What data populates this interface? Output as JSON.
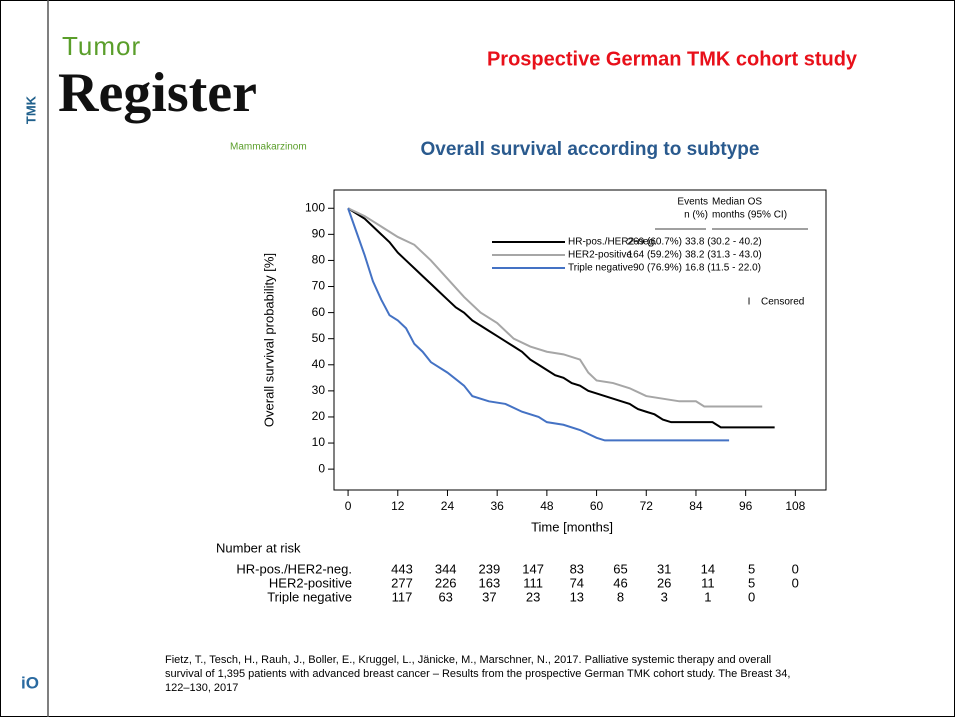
{
  "header": {
    "logo_top": "Tumor",
    "logo_main": "Register",
    "logo_sub": "Mammakarzinom",
    "side_label": "TMK",
    "corner_logo": "iO",
    "title": "Prospective German TMK cohort study"
  },
  "chart_data": {
    "type": "line",
    "title": "Overall survival according to subtype",
    "x_label": "Time [months]",
    "y_label": "Overall survival probability [%]",
    "xlim": [
      -3.4,
      115.4
    ],
    "ylim": [
      -8,
      107
    ],
    "xticks": [
      0,
      12,
      24,
      36,
      48,
      60,
      72,
      84,
      96,
      108
    ],
    "yticks": [
      0,
      10,
      20,
      30,
      40,
      50,
      60,
      70,
      80,
      90,
      100
    ],
    "legend_headers": {
      "events_1": "Events",
      "events_2": "n (%)",
      "median_1": "Median OS",
      "median_2": "months (95% CI)"
    },
    "censored_symbol": "I",
    "censored_label": "Censored",
    "series": [
      {
        "name": "HR-pos./HER2-neg.",
        "color": "#000000",
        "events": "269 (60.7%)",
        "median": "33.8 (30.2 - 40.2)",
        "x": [
          0,
          2,
          4,
          6,
          8,
          10,
          12,
          14,
          16,
          18,
          20,
          22,
          24,
          26,
          28,
          30,
          32,
          34,
          36,
          38,
          40,
          42,
          44,
          46,
          48,
          50,
          52,
          54,
          56,
          58,
          60,
          62,
          64,
          66,
          68,
          70,
          72,
          74,
          76,
          78,
          84,
          88,
          90,
          96,
          103
        ],
        "values": [
          100,
          98,
          96,
          93,
          90,
          87,
          83,
          80,
          77,
          74,
          71,
          68,
          65,
          62,
          60,
          57,
          55,
          53,
          51,
          49,
          47,
          45,
          42,
          40,
          38,
          36,
          35,
          33,
          32,
          30,
          29,
          28,
          27,
          26,
          25,
          23,
          22,
          21,
          19,
          18,
          18,
          18,
          16,
          16,
          16
        ]
      },
      {
        "name": "HER2-positive",
        "color": "#a6a6a6",
        "events": "164 (59.2%)",
        "median": "38.2 (31.3 - 43.0)",
        "x": [
          0,
          4,
          8,
          12,
          16,
          20,
          24,
          28,
          32,
          36,
          40,
          44,
          48,
          52,
          56,
          58,
          60,
          64,
          68,
          72,
          76,
          80,
          84,
          86,
          90,
          100
        ],
        "values": [
          100,
          97,
          93,
          89,
          86,
          80,
          73,
          66,
          60,
          56,
          50,
          47,
          45,
          44,
          42,
          37,
          34,
          33,
          31,
          28,
          27,
          26,
          26,
          24,
          24,
          24
        ]
      },
      {
        "name": "Triple negative",
        "color": "#4472c4",
        "events": "90 (76.9%)",
        "median": "16.8 (11.5 - 22.0)",
        "x": [
          0,
          2,
          4,
          6,
          8,
          10,
          12,
          14,
          16,
          18,
          20,
          24,
          28,
          30,
          34,
          38,
          42,
          46,
          48,
          52,
          56,
          60,
          62,
          70,
          80,
          92
        ],
        "values": [
          100,
          91,
          82,
          72,
          65,
          59,
          57,
          54,
          48,
          45,
          41,
          37,
          32,
          28,
          26,
          25,
          22,
          20,
          18,
          17,
          15,
          12,
          11,
          11,
          11,
          11
        ]
      }
    ],
    "risk_table": {
      "title": "Number at risk",
      "rows": [
        {
          "label": "HR-pos./HER2-neg.",
          "values": [
            443,
            344,
            239,
            147,
            83,
            65,
            31,
            14,
            5,
            0
          ]
        },
        {
          "label": "HER2-positive",
          "values": [
            277,
            226,
            163,
            111,
            74,
            46,
            26,
            11,
            5,
            0
          ]
        },
        {
          "label": "Triple negative",
          "values": [
            117,
            63,
            37,
            23,
            13,
            8,
            3,
            1,
            0
          ]
        }
      ]
    }
  },
  "citation": [
    "Fietz, T., Tesch, H., Rauh, J., Boller, E., Kruggel, L., Jänicke, M., Marschner, N., 2017. Palliative systemic therapy and overall",
    "survival of 1,395 patients with advanced breast cancer – Results from the prospective German TMK cohort study. The Breast 34,",
    "122–130, 2017"
  ]
}
